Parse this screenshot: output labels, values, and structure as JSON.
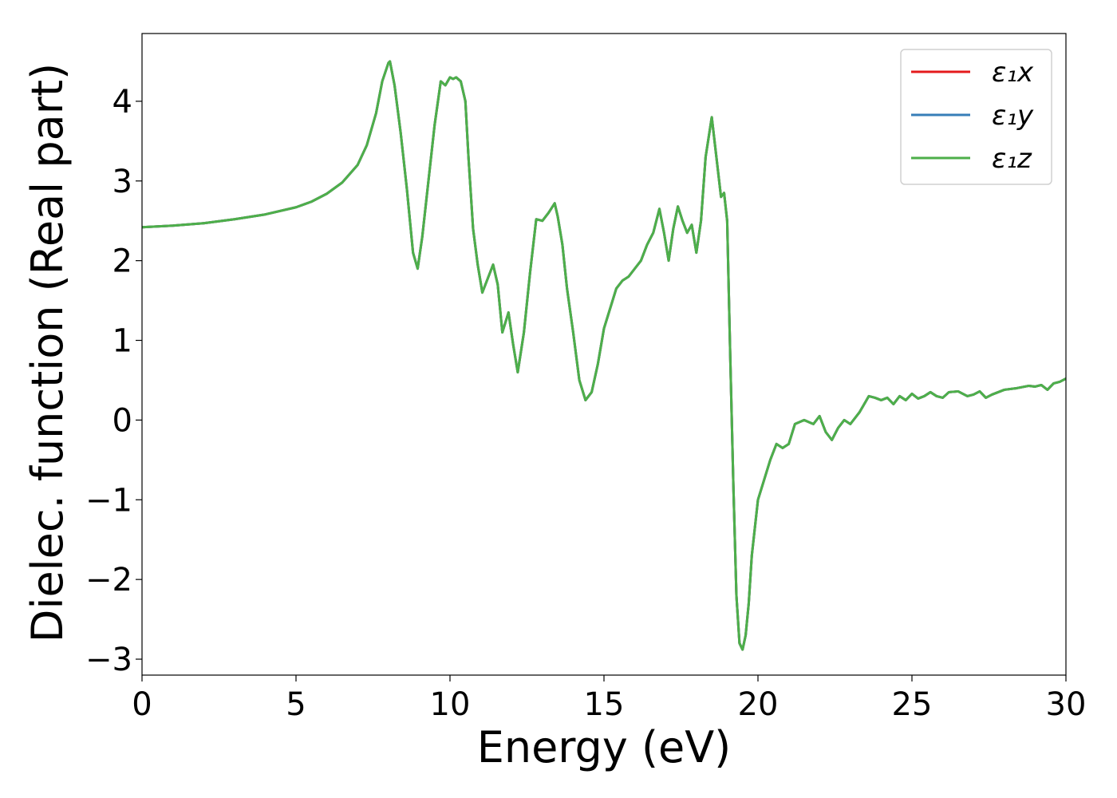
{
  "chart_data": {
    "type": "line",
    "title": "",
    "xlabel": "Energy (eV)",
    "ylabel": "Dielec. function (Real part)",
    "xlim": [
      0,
      30
    ],
    "ylim": [
      -3.2,
      4.85
    ],
    "xticks": [
      0,
      5,
      10,
      15,
      20,
      25,
      30
    ],
    "xtick_labels": [
      "0",
      "5",
      "10",
      "15",
      "20",
      "25",
      "30"
    ],
    "yticks": [
      -3,
      -2,
      -1,
      0,
      1,
      2,
      3,
      4
    ],
    "ytick_labels": [
      "−3",
      "−2",
      "−1",
      "0",
      "1",
      "2",
      "3",
      "4"
    ],
    "grid": false,
    "legend_position": "top-right",
    "series": [
      {
        "name": "ε₁x",
        "color": "#e41a1c",
        "x": [
          0,
          1,
          2,
          3,
          4,
          5,
          5.5,
          6,
          6.5,
          7,
          7.3,
          7.6,
          7.8,
          8.0,
          8.05,
          8.2,
          8.4,
          8.6,
          8.8,
          8.95,
          9.1,
          9.3,
          9.5,
          9.7,
          9.85,
          10.0,
          10.1,
          10.2,
          10.35,
          10.5,
          10.6,
          10.75,
          10.9,
          11.05,
          11.2,
          11.4,
          11.55,
          11.7,
          11.9,
          12.05,
          12.2,
          12.4,
          12.6,
          12.8,
          13.0,
          13.2,
          13.4,
          13.5,
          13.65,
          13.8,
          14.0,
          14.2,
          14.4,
          14.6,
          14.8,
          15.0,
          15.2,
          15.4,
          15.6,
          15.8,
          16.0,
          16.2,
          16.4,
          16.6,
          16.8,
          16.95,
          17.1,
          17.25,
          17.4,
          17.55,
          17.7,
          17.85,
          18.0,
          18.15,
          18.3,
          18.5,
          18.65,
          18.8,
          18.9,
          19.0,
          19.1,
          19.2,
          19.3,
          19.4,
          19.5,
          19.6,
          19.7,
          19.8,
          20.0,
          20.2,
          20.4,
          20.6,
          20.8,
          21.0,
          21.2,
          21.5,
          21.8,
          22.0,
          22.2,
          22.4,
          22.6,
          22.8,
          23.0,
          23.3,
          23.6,
          23.8,
          24.0,
          24.2,
          24.4,
          24.6,
          24.8,
          25.0,
          25.2,
          25.4,
          25.6,
          25.8,
          26.0,
          26.2,
          26.5,
          26.8,
          27.0,
          27.2,
          27.4,
          27.6,
          28.0,
          28.4,
          28.8,
          29.0,
          29.2,
          29.4,
          29.6,
          29.8,
          30.0
        ],
        "y": [
          2.42,
          2.44,
          2.47,
          2.52,
          2.58,
          2.67,
          2.74,
          2.84,
          2.98,
          3.2,
          3.45,
          3.85,
          4.25,
          4.48,
          4.5,
          4.2,
          3.6,
          2.9,
          2.1,
          1.9,
          2.3,
          3.0,
          3.7,
          4.25,
          4.2,
          4.3,
          4.28,
          4.3,
          4.25,
          4.0,
          3.3,
          2.4,
          1.95,
          1.6,
          1.75,
          1.95,
          1.7,
          1.1,
          1.35,
          0.95,
          0.6,
          1.1,
          1.85,
          2.52,
          2.5,
          2.6,
          2.72,
          2.55,
          2.2,
          1.65,
          1.1,
          0.5,
          0.25,
          0.35,
          0.7,
          1.15,
          1.4,
          1.65,
          1.75,
          1.8,
          1.9,
          2.0,
          2.2,
          2.35,
          2.65,
          2.35,
          2.0,
          2.4,
          2.68,
          2.5,
          2.35,
          2.45,
          2.1,
          2.5,
          3.3,
          3.8,
          3.3,
          2.8,
          2.85,
          2.5,
          0.8,
          -0.8,
          -2.2,
          -2.8,
          -2.88,
          -2.7,
          -2.3,
          -1.7,
          -1.0,
          -0.75,
          -0.5,
          -0.3,
          -0.35,
          -0.3,
          -0.05,
          0.0,
          -0.05,
          0.05,
          -0.15,
          -0.25,
          -0.1,
          0.0,
          -0.05,
          0.1,
          0.3,
          0.28,
          0.25,
          0.28,
          0.2,
          0.3,
          0.25,
          0.33,
          0.27,
          0.3,
          0.35,
          0.3,
          0.28,
          0.35,
          0.36,
          0.3,
          0.32,
          0.36,
          0.28,
          0.32,
          0.38,
          0.4,
          0.43,
          0.42,
          0.44,
          0.38,
          0.46,
          0.48,
          0.52
        ]
      },
      {
        "name": "ε₁y",
        "color": "#377eb8",
        "same_as": 0
      },
      {
        "name": "ε₁z",
        "color": "#4daf4a",
        "same_as": 0
      }
    ]
  }
}
